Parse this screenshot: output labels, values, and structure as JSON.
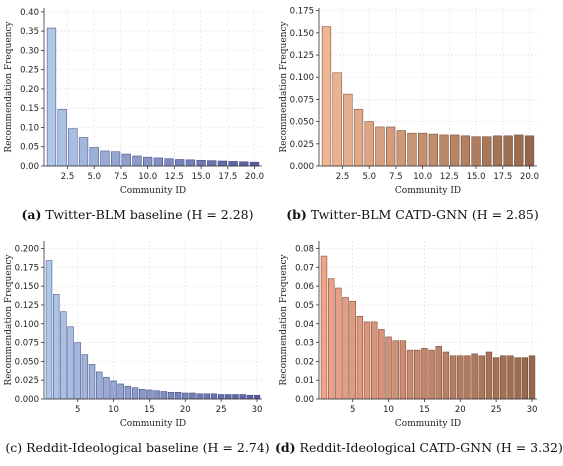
{
  "panels": [
    {
      "caption_letter": "(a)",
      "caption_text": " Twitter-BLM baseline (H = 2.28)",
      "chart_data": {
        "type": "bar",
        "xlabel": "Community ID",
        "ylabel": "Recommendation Frequency",
        "xlim": [
          0.3,
          20.7
        ],
        "ylim": [
          0,
          0.41
        ],
        "xticks": [
          2.5,
          5.0,
          7.5,
          10.0,
          12.5,
          15.0,
          17.5,
          20.0
        ],
        "xtick_labels": [
          "2.5",
          "5.0",
          "7.5",
          "10.0",
          "12.5",
          "15.0",
          "17.5",
          "20.0"
        ],
        "yticks": [
          0,
          0.05,
          0.1,
          0.15,
          0.2,
          0.25,
          0.3,
          0.35,
          0.4
        ],
        "ytick_labels": [
          "0.00",
          "0.05",
          "0.10",
          "0.15",
          "0.20",
          "0.25",
          "0.30",
          "0.35",
          "0.40"
        ],
        "x": [
          1,
          2,
          3,
          4,
          5,
          6,
          7,
          8,
          9,
          10,
          11,
          12,
          13,
          14,
          15,
          16,
          17,
          18,
          19,
          20
        ],
        "values": [
          0.358,
          0.147,
          0.097,
          0.074,
          0.048,
          0.039,
          0.037,
          0.031,
          0.026,
          0.023,
          0.021,
          0.019,
          0.017,
          0.016,
          0.015,
          0.014,
          0.013,
          0.012,
          0.011,
          0.01
        ],
        "color_start": "#a9c3e6",
        "color_end": "#4a4f96",
        "edge_color": "#3a3f80"
      }
    },
    {
      "caption_letter": "(b)",
      "caption_text": " Twitter-BLM CATD-GNN (H = 2.85)",
      "chart_data": {
        "type": "bar",
        "xlabel": "Community ID",
        "ylabel": "Recommendation Frequency",
        "xlim": [
          0.3,
          20.7
        ],
        "ylim": [
          0,
          0.178
        ],
        "xticks": [
          2.5,
          5.0,
          7.5,
          10.0,
          12.5,
          15.0,
          17.5,
          20.0
        ],
        "xtick_labels": [
          "2.5",
          "5.0",
          "7.5",
          "10.0",
          "12.5",
          "15.0",
          "17.5",
          "20.0"
        ],
        "yticks": [
          0,
          0.025,
          0.05,
          0.075,
          0.1,
          0.125,
          0.15,
          0.175
        ],
        "ytick_labels": [
          "0.000",
          "0.025",
          "0.050",
          "0.075",
          "0.100",
          "0.125",
          "0.150",
          "0.175"
        ],
        "x": [
          1,
          2,
          3,
          4,
          5,
          6,
          7,
          8,
          9,
          10,
          11,
          12,
          13,
          14,
          15,
          16,
          17,
          18,
          19,
          20
        ],
        "values": [
          0.157,
          0.105,
          0.081,
          0.064,
          0.05,
          0.044,
          0.044,
          0.04,
          0.037,
          0.037,
          0.036,
          0.035,
          0.035,
          0.034,
          0.033,
          0.033,
          0.034,
          0.034,
          0.035,
          0.034
        ],
        "color_start": "#eeb08a",
        "color_end": "#8d5a3c",
        "edge_color": "#6b3f2a"
      }
    },
    {
      "caption_letter": "(c)",
      "caption_text": " Reddit-Ideological baseline (H = 2.74)",
      "chart_data": {
        "type": "bar",
        "xlabel": "Community ID",
        "ylabel": "Recommendation Frequency",
        "xlim": [
          0.3,
          30.7
        ],
        "ylim": [
          0,
          0.21
        ],
        "xticks": [
          5,
          10,
          15,
          20,
          25,
          30
        ],
        "xtick_labels": [
          "5",
          "10",
          "15",
          "20",
          "25",
          "30"
        ],
        "yticks": [
          0,
          0.025,
          0.05,
          0.075,
          0.1,
          0.125,
          0.15,
          0.175,
          0.2
        ],
        "ytick_labels": [
          "0.000",
          "0.025",
          "0.050",
          "0.075",
          "0.100",
          "0.125",
          "0.150",
          "0.175",
          "0.200"
        ],
        "x": [
          1,
          2,
          3,
          4,
          5,
          6,
          7,
          8,
          9,
          10,
          11,
          12,
          13,
          14,
          15,
          16,
          17,
          18,
          19,
          20,
          21,
          22,
          23,
          24,
          25,
          26,
          27,
          28,
          29,
          30
        ],
        "values": [
          0.184,
          0.139,
          0.116,
          0.096,
          0.075,
          0.059,
          0.046,
          0.036,
          0.029,
          0.024,
          0.02,
          0.017,
          0.015,
          0.013,
          0.012,
          0.011,
          0.01,
          0.009,
          0.009,
          0.008,
          0.008,
          0.007,
          0.007,
          0.007,
          0.006,
          0.006,
          0.006,
          0.006,
          0.005,
          0.005
        ],
        "color_start": "#a9c3e6",
        "color_end": "#4a4f96",
        "edge_color": "#3a3f80"
      }
    },
    {
      "caption_letter": "(d)",
      "caption_text": " Reddit-Ideological CATD-GNN (H = 3.32)",
      "chart_data": {
        "type": "bar",
        "xlabel": "Community ID",
        "ylabel": "Recommendation Frequency",
        "xlim": [
          0.3,
          30.7
        ],
        "ylim": [
          0,
          0.084
        ],
        "xticks": [
          5,
          10,
          15,
          20,
          25,
          30
        ],
        "xtick_labels": [
          "5",
          "10",
          "15",
          "20",
          "25",
          "30"
        ],
        "yticks": [
          0,
          0.01,
          0.02,
          0.03,
          0.04,
          0.05,
          0.06,
          0.07,
          0.08
        ],
        "ytick_labels": [
          "0.00",
          "0.01",
          "0.02",
          "0.03",
          "0.04",
          "0.05",
          "0.06",
          "0.07",
          "0.08"
        ],
        "x": [
          1,
          2,
          3,
          4,
          5,
          6,
          7,
          8,
          9,
          10,
          11,
          12,
          13,
          14,
          15,
          16,
          17,
          18,
          19,
          20,
          21,
          22,
          23,
          24,
          25,
          26,
          27,
          28,
          29,
          30
        ],
        "values": [
          0.076,
          0.064,
          0.059,
          0.054,
          0.052,
          0.044,
          0.041,
          0.041,
          0.037,
          0.033,
          0.031,
          0.031,
          0.026,
          0.026,
          0.027,
          0.026,
          0.028,
          0.025,
          0.023,
          0.023,
          0.023,
          0.024,
          0.023,
          0.025,
          0.022,
          0.023,
          0.023,
          0.022,
          0.022,
          0.023
        ],
        "color_start": "#ee9b7e",
        "color_end": "#8d5a3c",
        "edge_color": "#6b3f2a"
      }
    }
  ]
}
